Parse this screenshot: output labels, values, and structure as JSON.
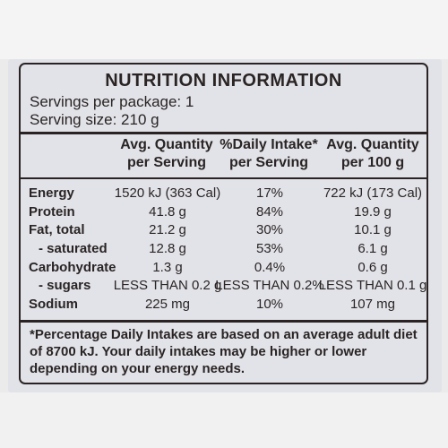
{
  "title": "NUTRITION INFORMATION",
  "servings_per_package": "Servings per package: 1",
  "serving_size": "Serving size: 210 g",
  "columns": [
    {
      "line1": "Avg. Quantity",
      "line2": "per Serving"
    },
    {
      "line1": "%Daily Intake*",
      "line2": "per Serving"
    },
    {
      "line1": "Avg. Quantity",
      "line2": "per 100 g"
    }
  ],
  "rows": [
    {
      "label": "Energy",
      "serving": "1520 kJ (363 Cal)",
      "daily": "17%",
      "per100": "722 kJ (173 Cal)"
    },
    {
      "label": "Protein",
      "serving": "41.8 g",
      "daily": "84%",
      "per100": "19.9 g"
    },
    {
      "label": "Fat, total",
      "serving": "21.2 g",
      "daily": "30%",
      "per100": "10.1 g"
    },
    {
      "label": "- saturated",
      "serving": "12.8 g",
      "daily": "53%",
      "per100": "6.1 g"
    },
    {
      "label": "Carbohydrate",
      "serving": "1.3 g",
      "daily": "0.4%",
      "per100": "0.6 g"
    },
    {
      "label": "- sugars",
      "serving": "LESS THAN 0.2 g",
      "daily": "LESS THAN 0.2%",
      "per100": "LESS THAN 0.1 g"
    },
    {
      "label": "Sodium",
      "serving": "225 mg",
      "daily": "10%",
      "per100": "107 mg"
    }
  ],
  "footnote": "*Percentage Daily Intakes are based on an average adult diet of 8700 kJ. Your daily intakes may be higher or lower depending on your energy needs."
}
